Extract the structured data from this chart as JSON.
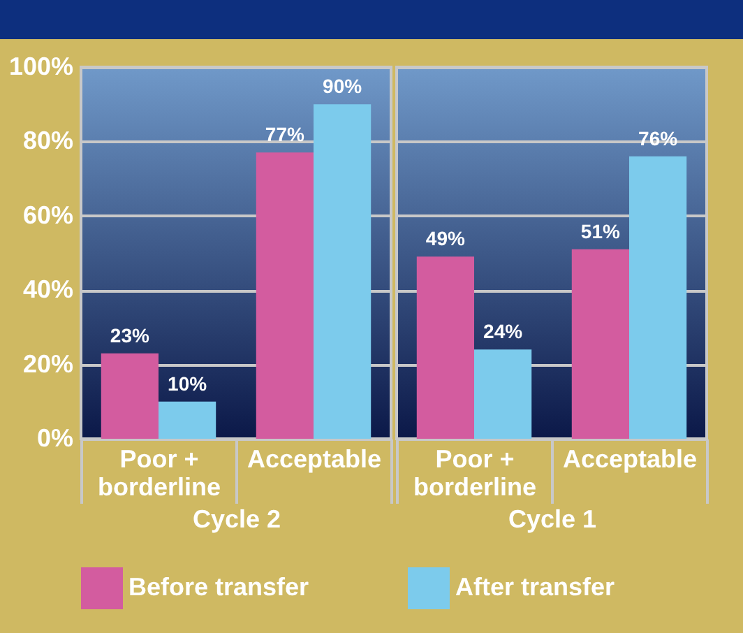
{
  "chart_data": [
    {
      "type": "bar",
      "xlabel": "Cycle 2",
      "categories": [
        "Poor + borderline",
        "Acceptable"
      ],
      "ylim": [
        0,
        100
      ],
      "yticks": [
        {
          "value": 0,
          "label": "0%"
        },
        {
          "value": 20,
          "label": "20%"
        },
        {
          "value": 40,
          "label": "40%"
        },
        {
          "value": 60,
          "label": "60%"
        },
        {
          "value": 80,
          "label": "80%"
        },
        {
          "value": 100,
          "label": "100%"
        }
      ],
      "grid": "y",
      "legend": "bottom",
      "series": [
        {
          "name": "Before transfer",
          "color": "#d35c9f",
          "values": [
            23,
            77
          ],
          "value_labels": [
            "23%",
            "77%"
          ]
        },
        {
          "name": "After transfer",
          "color": "#7ccbec",
          "values": [
            10,
            90
          ],
          "value_labels": [
            "10%",
            "90%"
          ]
        }
      ]
    },
    {
      "type": "bar",
      "xlabel": "Cycle 1",
      "categories": [
        "Poor + borderline",
        "Acceptable"
      ],
      "ylim": [
        0,
        100
      ],
      "yticks": [
        {
          "value": 0,
          "label": null
        },
        {
          "value": 20,
          "label": null
        },
        {
          "value": 40,
          "label": null
        },
        {
          "value": 60,
          "label": null
        },
        {
          "value": 80,
          "label": null
        },
        {
          "value": 100,
          "label": null
        }
      ],
      "grid": "y",
      "tick_labels": "x",
      "series": [
        {
          "name": "Before transfer",
          "color": "#d35c9f",
          "values": [
            49,
            51
          ],
          "value_labels": [
            "49%",
            "51%"
          ]
        },
        {
          "name": "After transfer",
          "color": "#7ccbec",
          "values": [
            24,
            76
          ],
          "value_labels": [
            "24%",
            "76%"
          ]
        }
      ]
    }
  ]
}
